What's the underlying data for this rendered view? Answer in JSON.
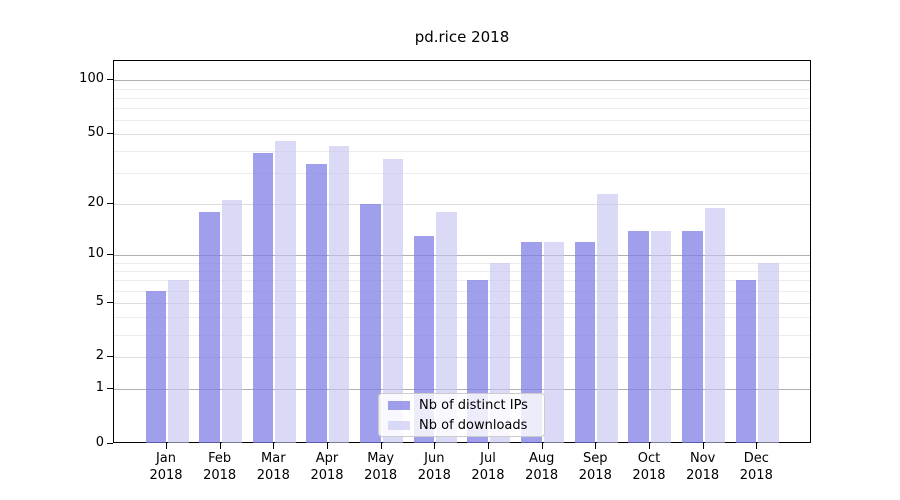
{
  "title": "pd.rice 2018",
  "legend": {
    "position": "lower center",
    "items": [
      {
        "label": "Nb of distinct IPs"
      },
      {
        "label": "Nb of downloads"
      }
    ]
  },
  "chart_data": {
    "type": "bar",
    "title": "pd.rice 2018",
    "xlabel": "",
    "ylabel": "",
    "y_scale": "log1p",
    "ylim": [
      0,
      128
    ],
    "yticks": [
      0,
      1,
      2,
      5,
      10,
      20,
      50,
      100
    ],
    "major_decades": [
      1,
      10,
      100
    ],
    "minor_gridlines": [
      3,
      4,
      6,
      7,
      8,
      9,
      30,
      40,
      60,
      70,
      80,
      90
    ],
    "grid": "on",
    "categories": [
      "Jan 2018",
      "Feb 2018",
      "Mar 2018",
      "Apr 2018",
      "May 2018",
      "Jun 2018",
      "Jul 2018",
      "Aug 2018",
      "Sep 2018",
      "Oct 2018",
      "Nov 2018",
      "Dec 2018"
    ],
    "series": [
      {
        "name": "Nb of distinct IPs",
        "color": "rgba(124,124,229,0.73)",
        "values": [
          6,
          18,
          39,
          34,
          20,
          13,
          7,
          12,
          12,
          14,
          14,
          7
        ]
      },
      {
        "name": "Nb of downloads",
        "color": "rgba(197,197,243,0.63)",
        "values": [
          7,
          21,
          46,
          43,
          36,
          18,
          9,
          12,
          23,
          14,
          19,
          9
        ]
      }
    ],
    "grid_colors": {
      "decade": "#b0b0b0",
      "labeled": "#dddddd",
      "minor": "#ececec"
    }
  }
}
